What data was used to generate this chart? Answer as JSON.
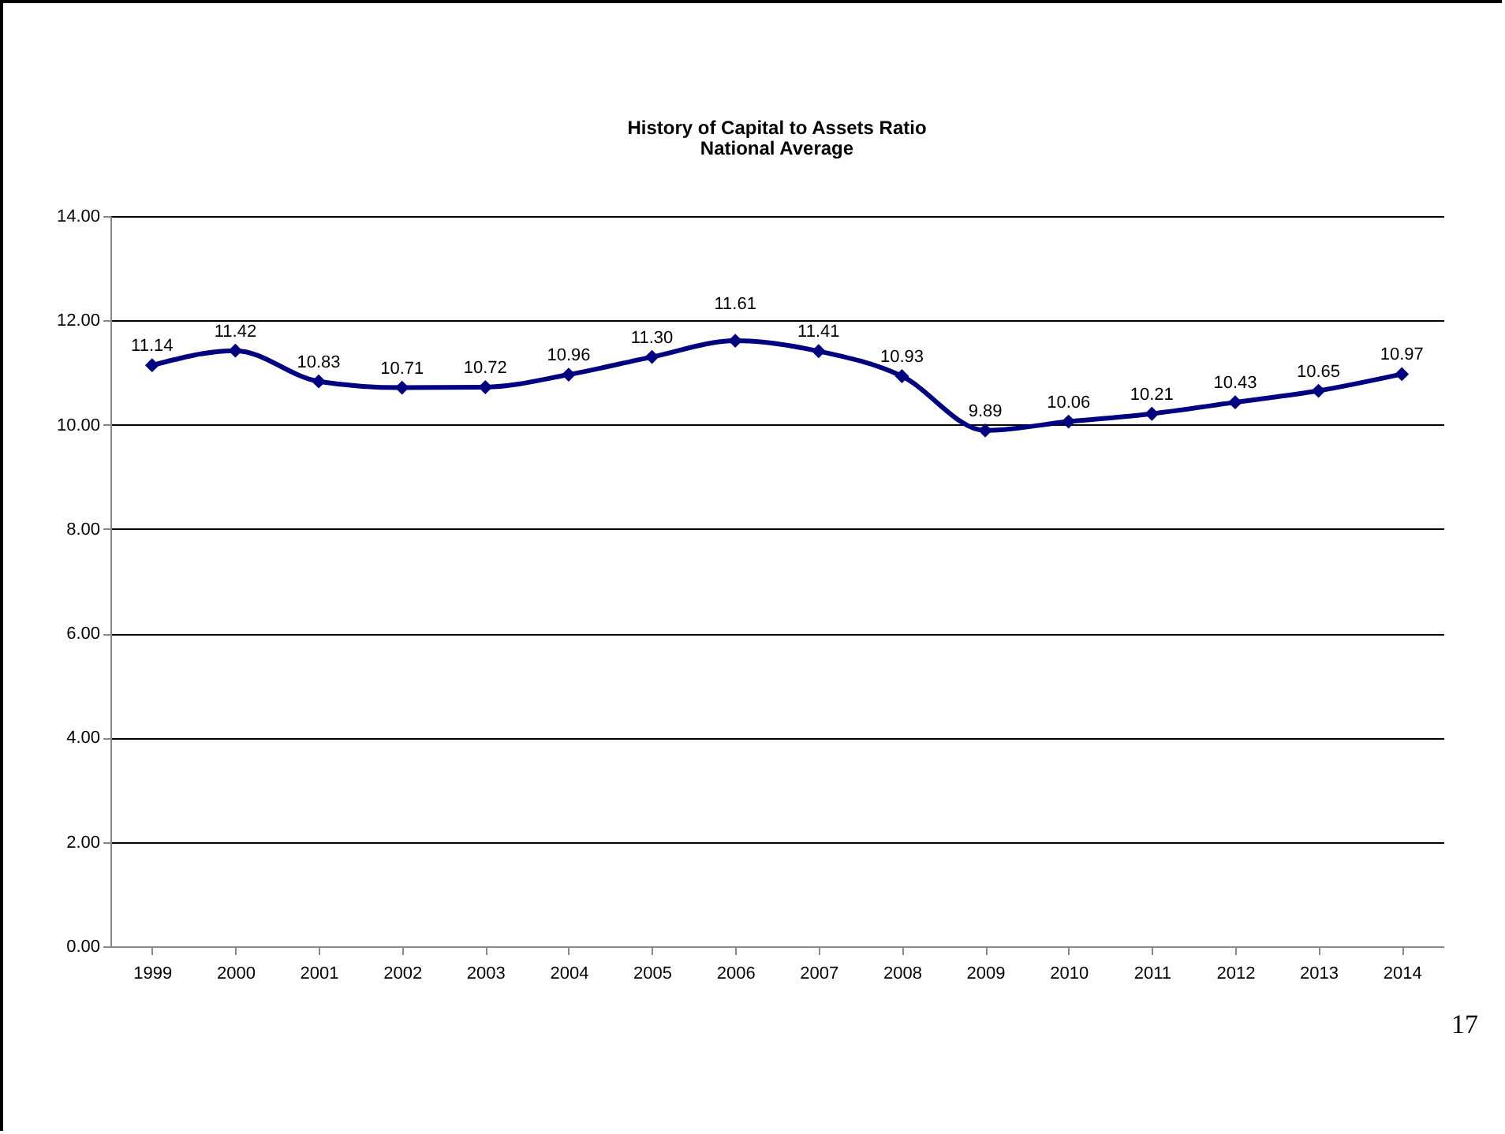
{
  "chart_data": {
    "type": "line",
    "title": "History of Capital to Assets Ratio",
    "subtitle": "National Average",
    "categories": [
      "1999",
      "2000",
      "2001",
      "2002",
      "2003",
      "2004",
      "2005",
      "2006",
      "2007",
      "2008",
      "2009",
      "2010",
      "2011",
      "2012",
      "2013",
      "2014"
    ],
    "series": [
      {
        "color": "#000080",
        "values": [
          11.14,
          11.42,
          10.83,
          10.71,
          10.72,
          10.96,
          11.3,
          11.61,
          11.41,
          10.93,
          9.89,
          10.06,
          10.21,
          10.43,
          10.65,
          10.97
        ],
        "value_labels": [
          "11.14",
          "11.42",
          "10.83",
          "10.71",
          "10.72",
          "10.96",
          "11.30",
          "11.61",
          "11.41",
          "10.93",
          "9.89",
          "10.06",
          "10.21",
          "10.43",
          "10.65",
          "10.97"
        ]
      }
    ],
    "ylim": [
      0,
      14
    ],
    "yticks": [
      {
        "value": 0,
        "label": "0.00"
      },
      {
        "value": 2,
        "label": "2.00"
      },
      {
        "value": 4,
        "label": "4.00"
      },
      {
        "value": 6,
        "label": "6.00"
      },
      {
        "value": 8,
        "label": "8.00"
      },
      {
        "value": 10,
        "label": "10.00"
      },
      {
        "value": 12,
        "label": "12.00"
      },
      {
        "value": 14,
        "label": "14.00"
      }
    ],
    "grid": "y",
    "marker": "diamond",
    "line_style": "solid",
    "annotations": [
      "17"
    ]
  }
}
